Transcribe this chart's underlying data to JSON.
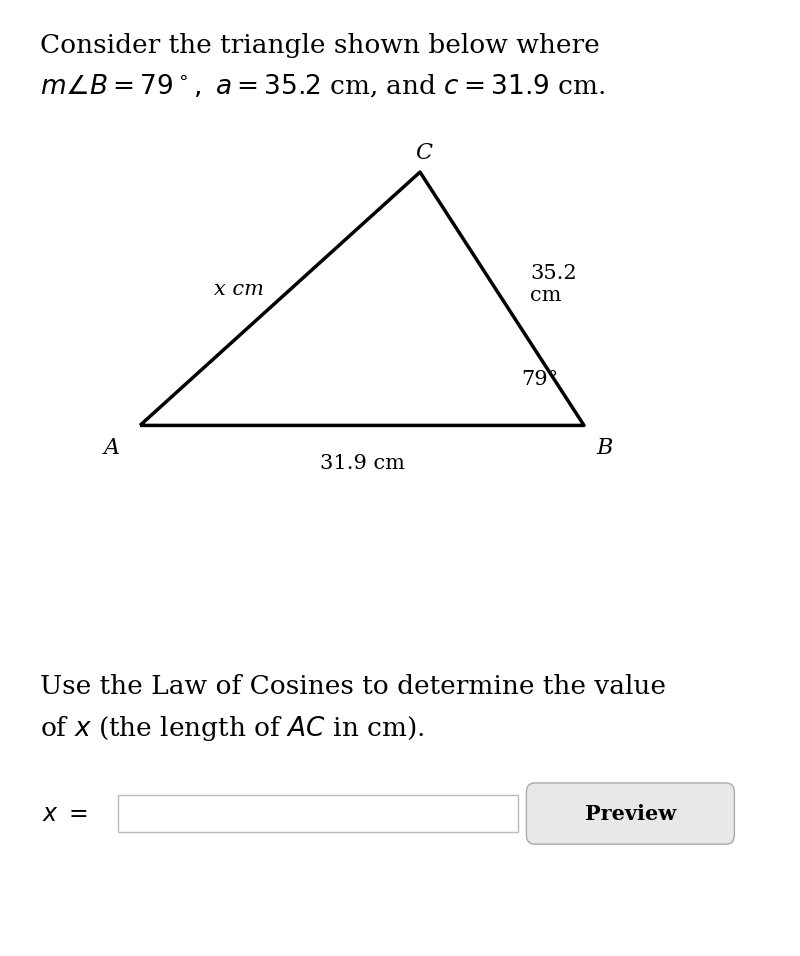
{
  "title_line1": "Consider the triangle shown below where",
  "title_line2_plain": "m∠B = 79°, a = 35.2 cm, and c = 31.9 cm.",
  "bottom_text_line1": "Use the Law of Cosines to determine the value",
  "bottom_text_line2": "of x (the length of AC in cm).",
  "input_label": "x =",
  "button_label": "Preview",
  "vertex_A": [
    0.175,
    0.555
  ],
  "vertex_B": [
    0.73,
    0.555
  ],
  "vertex_C": [
    0.525,
    0.82
  ],
  "label_A": "A",
  "label_B": "B",
  "label_C": "C",
  "label_AB": "31.9 cm",
  "label_BC_line1": "35.2",
  "label_BC_line2": "cm",
  "label_AC": "x cm",
  "label_angle_B": "79°",
  "bg_color": "#ffffff",
  "text_color": "#000000",
  "line_color": "#000000",
  "line_width": 2.5,
  "font_size_title": 19,
  "font_size_vertex": 16,
  "font_size_side": 15,
  "font_size_input": 17,
  "font_size_bottom": 19
}
